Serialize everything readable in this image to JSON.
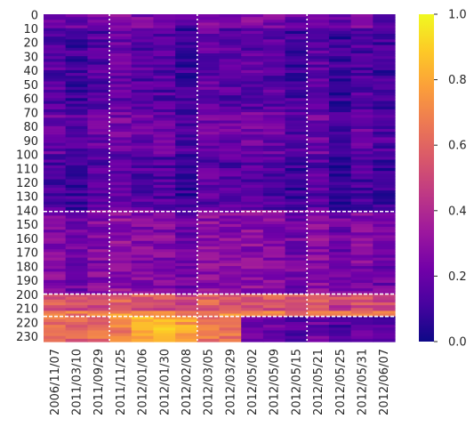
{
  "chart_data": {
    "type": "heatmap",
    "title": "",
    "xlabel": "",
    "ylabel": "",
    "colormap": "plasma",
    "x_tick_labels": [
      "2006/11/07",
      "2011/03/10",
      "2011/09/29",
      "2011/11/25",
      "2012/01/06",
      "2012/01/30",
      "2012/02/08",
      "2012/03/05",
      "2012/03/29",
      "2012/05/02",
      "2012/05/09",
      "2012/05/15",
      "2012/05/21",
      "2012/05/25",
      "2012/05/31",
      "2012/06/07"
    ],
    "y_tick_labels": [
      "0",
      "10",
      "20",
      "30",
      "40",
      "50",
      "60",
      "70",
      "80",
      "90",
      "100",
      "110",
      "120",
      "130",
      "140",
      "150",
      "160",
      "170",
      "180",
      "190",
      "200",
      "210",
      "220",
      "230"
    ],
    "y_tick_values": [
      0,
      10,
      20,
      30,
      40,
      50,
      60,
      70,
      80,
      90,
      100,
      110,
      120,
      130,
      140,
      150,
      160,
      170,
      180,
      190,
      200,
      210,
      220,
      230
    ],
    "n_rows": 234,
    "n_columns": 16,
    "value_range": [
      0.0,
      1.0
    ],
    "colorbar": {
      "tick_labels": [
        "0.0",
        "0.2",
        "0.4",
        "0.6",
        "0.8",
        "1.0"
      ],
      "tick_values": [
        0.0,
        0.2,
        0.4,
        0.6,
        0.8,
        1.0
      ],
      "colors": [
        "#0d0887",
        "#46039f",
        "#7201a8",
        "#9c179e",
        "#bd3786",
        "#d8576b",
        "#ed7953",
        "#fb9f3a",
        "#fdca26",
        "#f0f921"
      ]
    },
    "vertical_divider_columns": [
      3,
      7,
      12
    ],
    "horizontal_divider_rows": [
      141,
      200,
      216
    ],
    "row_bands": [
      {
        "rows": [
          0,
          10
        ],
        "mean": 0.22
      },
      {
        "rows": [
          10,
          70
        ],
        "mean": 0.13
      },
      {
        "rows": [
          70,
          100
        ],
        "mean": 0.18
      },
      {
        "rows": [
          100,
          140
        ],
        "mean": 0.12
      },
      {
        "rows": [
          140,
          200
        ],
        "mean": 0.25
      },
      {
        "rows": [
          200,
          208
        ],
        "mean": 0.55
      },
      {
        "rows": [
          208,
          212
        ],
        "mean": 0.48
      },
      {
        "rows": [
          212,
          216
        ],
        "mean": 0.68
      },
      {
        "rows": [
          216,
          234
        ],
        "mean": 0.62
      }
    ]
  }
}
